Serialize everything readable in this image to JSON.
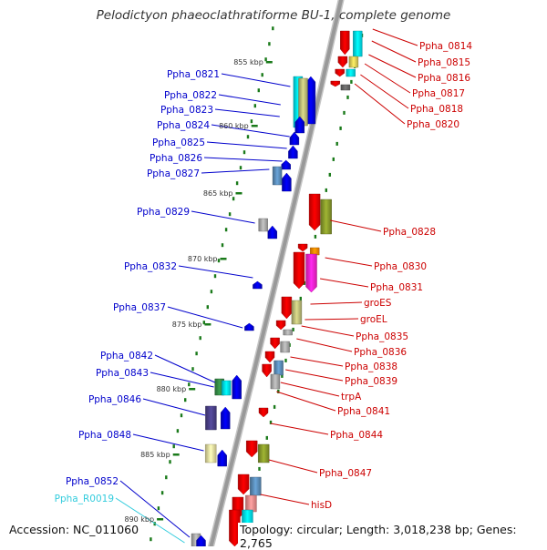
{
  "title": "Pelodictyon phaeoclathratiforme BU-1, complete genome",
  "footer": {
    "accession": "Accession: NC_011060",
    "topology": "Topology: circular; Length: 3,018,238 bp; Genes: 2,765"
  },
  "colors": {
    "axis": "#999999",
    "plus_strand_label": "#cc0000",
    "minus_strand_label": "#0000cc",
    "rna_label": "#33ccdd",
    "tick": "#1a7a1a"
  },
  "scale_labels": [
    "855 kbp",
    "860 kbp",
    "865 kbp",
    "870 kbp",
    "875 kbp",
    "880 kbp",
    "885 kbp",
    "890 kbp"
  ],
  "right_labels": [
    "Ppha_0814",
    "Ppha_0815",
    "Ppha_0816",
    "Ppha_0817",
    "Ppha_0818",
    "Ppha_0820",
    "Ppha_0828",
    "Ppha_0830",
    "Ppha_0831",
    "groES",
    "groEL",
    "Ppha_0835",
    "Ppha_0836",
    "Ppha_0838",
    "Ppha_0839",
    "trpA",
    "Ppha_0841",
    "Ppha_0844",
    "Ppha_0847",
    "hisD"
  ],
  "left_labels": [
    "Ppha_0821",
    "Ppha_0822",
    "Ppha_0823",
    "Ppha_0824",
    "Ppha_0825",
    "Ppha_0826",
    "Ppha_0827",
    "Ppha_0829",
    "Ppha_0832",
    "Ppha_0837",
    "Ppha_0842",
    "Ppha_0843",
    "Ppha_0846",
    "Ppha_0848",
    "Ppha_0852",
    "Ppha_R0019"
  ]
}
